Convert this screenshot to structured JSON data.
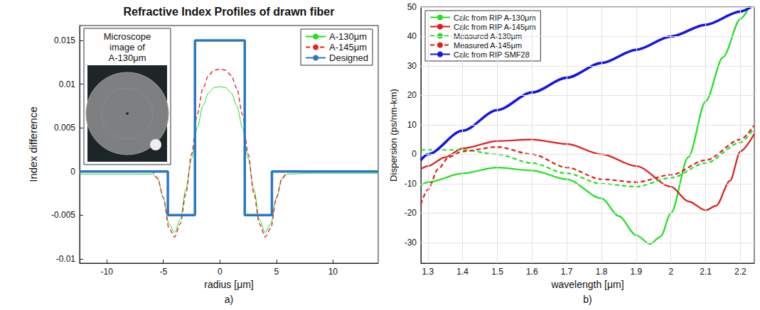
{
  "chart_data": [
    {
      "type": "line",
      "title": "Refractive Index Profiles of drawn fiber",
      "x_label": "radius [μm]",
      "y_label": "Index difference",
      "caption": "a)",
      "annotations": [
        "Microscope image of A-130μm"
      ],
      "xlim": [
        -12.4,
        14
      ],
      "xticks": [
        -10,
        -5,
        0,
        5,
        10
      ],
      "ylim": [
        -0.0105,
        0.0167
      ],
      "yticks": [
        -0.01,
        -0.005,
        0,
        0.005,
        0.01,
        0.015
      ],
      "grid": false,
      "legend": "upper right",
      "series": [
        {
          "name": "A-130μm",
          "color": "#22dd22",
          "line_style": "solid",
          "marker": "none",
          "x": [
            -12.4,
            -8,
            -6,
            -5.5,
            -5,
            -4.5,
            -4,
            -3.5,
            -3,
            -2.5,
            -2,
            -1.5,
            -1,
            -0.5,
            0,
            0.5,
            1,
            1.5,
            2,
            2.5,
            3,
            3.5,
            4,
            4.5,
            5,
            5.5,
            6,
            8,
            14
          ],
          "values": [
            -0.0003,
            -0.0003,
            -0.0003,
            -0.0008,
            -0.003,
            -0.006,
            -0.007,
            -0.0055,
            -0.002,
            0.0015,
            0.005,
            0.0075,
            0.009,
            0.0096,
            0.0097,
            0.0096,
            0.009,
            0.0075,
            0.005,
            0.0015,
            -0.002,
            -0.0055,
            -0.007,
            -0.006,
            -0.003,
            -0.0008,
            -0.0003,
            -0.0002,
            -0.0002
          ]
        },
        {
          "name": "A-145μm",
          "color": "#e8222a",
          "line_style": "dashed",
          "marker": "none",
          "x": [
            -12.4,
            -8,
            -6,
            -5.5,
            -5,
            -4.5,
            -4,
            -3.5,
            -3,
            -2.5,
            -2,
            -1.5,
            -1,
            -0.5,
            0,
            0.5,
            1,
            1.5,
            2,
            2.5,
            3,
            3.5,
            4,
            4.5,
            5,
            5.5,
            6,
            8,
            14
          ],
          "values": [
            0,
            0,
            0,
            -0.0008,
            -0.003,
            -0.0065,
            -0.0075,
            -0.006,
            -0.0025,
            0.002,
            0.0065,
            0.0095,
            0.011,
            0.0116,
            0.0117,
            0.0116,
            0.011,
            0.0095,
            0.0065,
            0.002,
            -0.0025,
            -0.006,
            -0.0075,
            -0.0065,
            -0.003,
            -0.0008,
            0,
            0,
            0
          ]
        },
        {
          "name": "Designed",
          "color": "#2a78c4",
          "line_style": "solid",
          "marker": "none",
          "x": [
            -12.4,
            -4.6,
            -4.6,
            -2.2,
            -2.2,
            2.2,
            2.2,
            4.6,
            4.6,
            14
          ],
          "values": [
            0,
            0,
            -0.005,
            -0.005,
            0.015,
            0.015,
            -0.005,
            -0.005,
            0,
            0
          ]
        }
      ]
    },
    {
      "type": "line",
      "x_label": "wavelength [μm]",
      "y_label": "Dispersion (ps/nm-km)",
      "caption": "b)",
      "xlim": [
        1.28,
        2.24
      ],
      "xticks": [
        1.3,
        1.4,
        1.5,
        1.6,
        1.7,
        1.8,
        1.9,
        2,
        2.1,
        2.2
      ],
      "ylim": [
        -37,
        50
      ],
      "yticks": [
        -30,
        -20,
        -10,
        0,
        10,
        20,
        30,
        40,
        50
      ],
      "grid": true,
      "legend": "upper left",
      "series": [
        {
          "name": "Calc from RIP A-130μm",
          "color": "#1fe01f",
          "line_style": "solid",
          "marker": "none",
          "x": [
            1.28,
            1.3,
            1.4,
            1.5,
            1.6,
            1.7,
            1.8,
            1.85,
            1.9,
            1.94,
            1.97,
            2.0,
            2.05,
            2.1,
            2.15,
            2.2,
            2.225
          ],
          "values": [
            -10.5,
            -9.5,
            -6.5,
            -4.5,
            -5.5,
            -8.5,
            -15,
            -21,
            -27.5,
            -30.5,
            -28,
            -20,
            -1,
            18,
            33,
            46,
            50
          ]
        },
        {
          "name": "Calc from RIP A-145μm",
          "color": "#e01b1b",
          "line_style": "solid",
          "marker": "none",
          "x": [
            1.28,
            1.3,
            1.35,
            1.4,
            1.5,
            1.6,
            1.7,
            1.8,
            1.9,
            2.0,
            2.05,
            2.1,
            2.13,
            2.17,
            2.2,
            2.24
          ],
          "values": [
            -5,
            -4,
            -1,
            2,
            4.5,
            5,
            3.5,
            0,
            -4,
            -11,
            -16,
            -19,
            -17.5,
            -9,
            1,
            7
          ]
        },
        {
          "name": "Measured A-130μm",
          "color": "#1fe01f",
          "line_style": "dashed",
          "marker": "none",
          "x": [
            1.28,
            1.3,
            1.4,
            1.5,
            1.6,
            1.7,
            1.8,
            1.9,
            2.0,
            2.1,
            2.2,
            2.24
          ],
          "values": [
            1.5,
            1.5,
            1.5,
            0,
            -3,
            -6.5,
            -10,
            -11,
            -8,
            -3,
            4,
            9
          ]
        },
        {
          "name": "Measured A-145μm",
          "color": "#e01b1b",
          "line_style": "dashed",
          "marker": "none",
          "x": [
            1.28,
            1.3,
            1.33,
            1.36,
            1.4,
            1.5,
            1.6,
            1.7,
            1.8,
            1.9,
            2.0,
            2.1,
            2.2,
            2.24
          ],
          "values": [
            -17,
            -12,
            -5,
            -1,
            1,
            2.5,
            0,
            -4.5,
            -8.5,
            -9.5,
            -7,
            -2,
            5,
            10
          ]
        },
        {
          "name": "Calc from RIP SMF28",
          "color": "#1414e6",
          "line_style": "solid",
          "marker": "none",
          "x": [
            1.28,
            1.3,
            1.4,
            1.5,
            1.6,
            1.7,
            1.8,
            1.9,
            2.0,
            2.1,
            2.2,
            2.23
          ],
          "values": [
            -2,
            0,
            8,
            15,
            21,
            26,
            31,
            35.5,
            40,
            44,
            48.5,
            50
          ]
        }
      ]
    }
  ]
}
